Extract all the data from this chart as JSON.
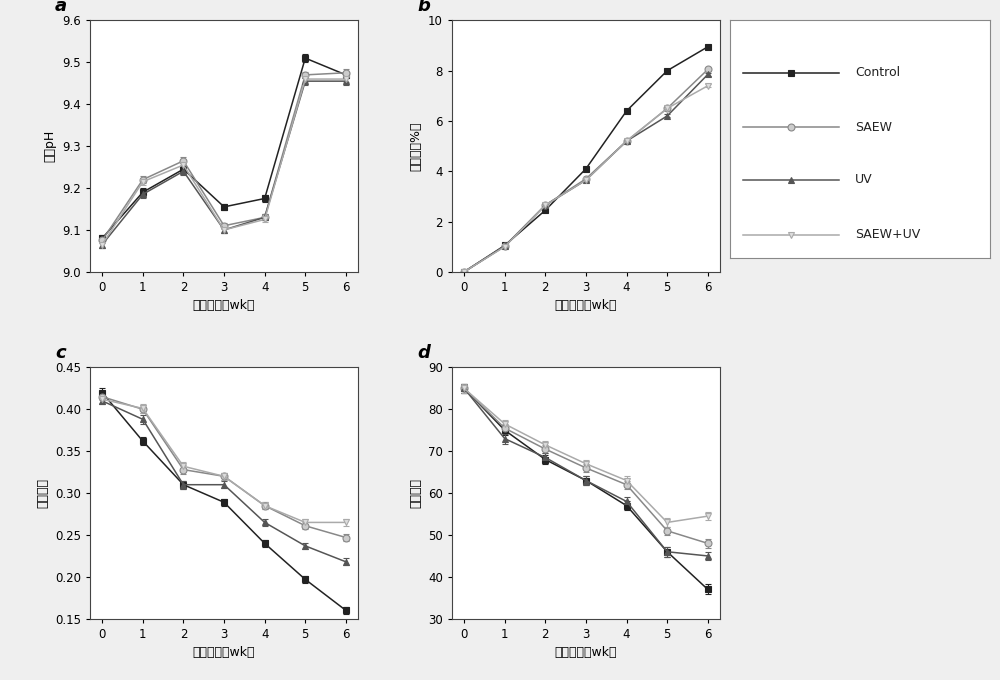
{
  "x": [
    0,
    1,
    2,
    3,
    4,
    5,
    6
  ],
  "bg_color": "#efefef",
  "axes_bg": "#ffffff",
  "panel_a": {
    "label": "a",
    "ylabel": "蛋清pH",
    "xlabel": "贮藏时间（wk）",
    "ylim": [
      9.0,
      9.6
    ],
    "yticks": [
      9.0,
      9.1,
      9.2,
      9.3,
      9.4,
      9.5,
      9.6
    ],
    "Control": [
      9.08,
      9.19,
      9.245,
      9.155,
      9.175,
      9.51,
      9.47
    ],
    "SAEW": [
      9.075,
      9.22,
      9.265,
      9.11,
      9.13,
      9.47,
      9.475
    ],
    "UV": [
      9.065,
      9.185,
      9.24,
      9.1,
      9.13,
      9.455,
      9.455
    ],
    "SAEW+UV": [
      9.065,
      9.215,
      9.255,
      9.1,
      9.125,
      9.46,
      9.46
    ],
    "Control_err": [
      0.008,
      0.01,
      0.008,
      0.008,
      0.008,
      0.01,
      0.008
    ],
    "SAEW_err": [
      0.007,
      0.008,
      0.01,
      0.007,
      0.007,
      0.008,
      0.008
    ],
    "UV_err": [
      0.007,
      0.008,
      0.008,
      0.007,
      0.007,
      0.008,
      0.008
    ],
    "SAEW+UV_err": [
      0.007,
      0.008,
      0.008,
      0.007,
      0.007,
      0.008,
      0.008
    ]
  },
  "panel_b": {
    "label": "b",
    "ylabel": "失重率（%）",
    "xlabel": "贮藏时间（wk）",
    "ylim": [
      0,
      10
    ],
    "yticks": [
      0,
      2,
      4,
      6,
      8,
      10
    ],
    "Control": [
      0.0,
      1.05,
      2.45,
      4.1,
      6.4,
      8.0,
      8.95
    ],
    "SAEW": [
      0.0,
      1.02,
      2.65,
      3.7,
      5.2,
      6.5,
      8.05
    ],
    "UV": [
      0.0,
      1.02,
      2.65,
      3.65,
      5.2,
      6.2,
      7.85
    ],
    "SAEW+UV": [
      0.0,
      1.0,
      2.65,
      3.65,
      5.2,
      6.5,
      7.4
    ],
    "Control_err": [
      0.0,
      0.03,
      0.03,
      0.06,
      0.06,
      0.06,
      0.06
    ],
    "SAEW_err": [
      0.0,
      0.03,
      0.03,
      0.06,
      0.06,
      0.06,
      0.06
    ],
    "UV_err": [
      0.0,
      0.03,
      0.03,
      0.06,
      0.06,
      0.06,
      0.06
    ],
    "SAEW+UV_err": [
      0.0,
      0.03,
      0.03,
      0.06,
      0.06,
      0.06,
      0.06
    ]
  },
  "panel_c": {
    "label": "c",
    "ylabel": "蛋黄指数",
    "xlabel": "贮藏时间（wk）",
    "ylim": [
      0.15,
      0.45
    ],
    "yticks": [
      0.15,
      0.2,
      0.25,
      0.3,
      0.35,
      0.4,
      0.45
    ],
    "Control": [
      0.42,
      0.362,
      0.31,
      0.289,
      0.24,
      0.197,
      0.16
    ],
    "SAEW": [
      0.415,
      0.4,
      0.328,
      0.32,
      0.285,
      0.261,
      0.247
    ],
    "UV": [
      0.41,
      0.388,
      0.31,
      0.31,
      0.265,
      0.237,
      0.218
    ],
    "SAEW+UV": [
      0.412,
      0.401,
      0.332,
      0.32,
      0.285,
      0.265,
      0.265
    ],
    "Control_err": [
      0.005,
      0.005,
      0.005,
      0.004,
      0.004,
      0.004,
      0.004
    ],
    "SAEW_err": [
      0.004,
      0.005,
      0.005,
      0.004,
      0.004,
      0.004,
      0.004
    ],
    "UV_err": [
      0.004,
      0.005,
      0.005,
      0.004,
      0.004,
      0.004,
      0.004
    ],
    "SAEW+UV_err": [
      0.004,
      0.005,
      0.005,
      0.004,
      0.004,
      0.004,
      0.004
    ]
  },
  "panel_d": {
    "label": "d",
    "ylabel": "哈夫单位",
    "xlabel": "贮藏时间（wk）",
    "ylim": [
      30,
      90
    ],
    "yticks": [
      30,
      40,
      50,
      60,
      70,
      80,
      90
    ],
    "Control": [
      85.0,
      75.0,
      68.0,
      63.0,
      57.0,
      46.0,
      37.0
    ],
    "SAEW": [
      85.0,
      75.5,
      70.5,
      66.0,
      62.0,
      51.0,
      48.0
    ],
    "UV": [
      85.0,
      73.0,
      68.5,
      63.0,
      58.0,
      46.0,
      45.0
    ],
    "SAEW+UV": [
      85.0,
      76.5,
      71.5,
      67.0,
      63.0,
      53.0,
      54.5
    ],
    "Control_err": [
      1.0,
      1.2,
      1.0,
      1.0,
      1.0,
      1.2,
      1.2
    ],
    "SAEW_err": [
      1.0,
      1.0,
      1.0,
      1.0,
      1.0,
      1.0,
      1.0
    ],
    "UV_err": [
      1.0,
      1.2,
      1.0,
      1.0,
      1.0,
      1.2,
      1.0
    ],
    "SAEW+UV_err": [
      1.0,
      1.0,
      1.0,
      1.0,
      1.0,
      1.0,
      1.0
    ]
  },
  "series": [
    "Control",
    "SAEW",
    "UV",
    "SAEW+UV"
  ],
  "legend_labels": [
    "Control",
    "SAEW",
    "UV",
    "SAEW+UV"
  ],
  "colors": {
    "Control": "#222222",
    "SAEW": "#888888",
    "UV": "#555555",
    "SAEW+UV": "#aaaaaa"
  },
  "markerfacecolors": {
    "Control": "#222222",
    "SAEW": "#cccccc",
    "UV": "#555555",
    "SAEW+UV": "#dddddd"
  },
  "markers": {
    "Control": "s",
    "SAEW": "o",
    "UV": "^",
    "SAEW+UV": "v"
  },
  "markersize": 5,
  "linewidth": 1.1,
  "capsize": 2,
  "elinewidth": 0.8
}
